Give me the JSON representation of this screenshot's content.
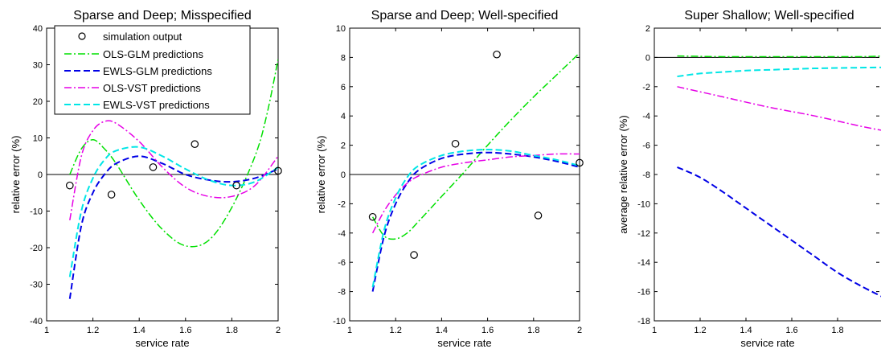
{
  "colors": {
    "sim": "#000000",
    "ols_glm": "#00e000",
    "ewls_glm": "#0000e6",
    "ols_vst": "#e600e6",
    "ewls_vst": "#00e6e6",
    "zero": "#000000"
  },
  "chart_data": [
    {
      "type": "line",
      "title": "Sparse and Deep; Misspecified",
      "xlabel": "service rate",
      "ylabel": "relative error (%)",
      "xlim": [
        1,
        2
      ],
      "ylim": [
        -40,
        40
      ],
      "xticks": [
        "1",
        "1.2",
        "1.4",
        "1.6",
        "1.8",
        "2"
      ],
      "xtick_values": [
        1,
        1.2,
        1.4,
        1.6,
        1.8,
        2
      ],
      "yticks": [
        "-40",
        "-30",
        "-20",
        "-10",
        "0",
        "10",
        "20",
        "30",
        "40"
      ],
      "ytick_values": [
        -40,
        -30,
        -20,
        -10,
        0,
        10,
        20,
        30,
        40
      ],
      "zero_line": true,
      "legend": {
        "placement": "top-left",
        "entries": [
          "simulation output",
          "OLS-GLM predictions",
          "EWLS-GLM predictions",
          "OLS-VST predictions",
          "EWLS-VST predictions"
        ]
      },
      "points": {
        "name": "simulation output",
        "x": [
          1.1,
          1.28,
          1.46,
          1.64,
          1.82,
          2.0
        ],
        "y": [
          -3,
          -5.5,
          2,
          8.3,
          -3,
          1
        ]
      },
      "series": [
        {
          "name": "OLS-GLM predictions",
          "style": "dashdot",
          "color_key": "ols_glm",
          "x": [
            1.1,
            1.15,
            1.2,
            1.25,
            1.3,
            1.4,
            1.5,
            1.6,
            1.7,
            1.8,
            1.9,
            1.95,
            2.0
          ],
          "y": [
            0,
            7,
            9.5,
            7,
            3,
            -7,
            -15,
            -19.5,
            -18,
            -9,
            5,
            16,
            31.5
          ]
        },
        {
          "name": "EWLS-GLM predictions",
          "style": "dashed",
          "color_key": "ewls_glm",
          "x": [
            1.1,
            1.15,
            1.2,
            1.25,
            1.3,
            1.4,
            1.5,
            1.6,
            1.7,
            1.8,
            1.9,
            2.0
          ],
          "y": [
            -34,
            -14,
            -5,
            0,
            3,
            5,
            3,
            0,
            -1.5,
            -2,
            -1,
            1.5
          ]
        },
        {
          "name": "OLS-VST predictions",
          "style": "dashdot",
          "color_key": "ols_vst",
          "x": [
            1.1,
            1.15,
            1.2,
            1.25,
            1.3,
            1.4,
            1.5,
            1.6,
            1.7,
            1.8,
            1.9,
            2.0
          ],
          "y": [
            -12.5,
            5,
            12,
            14.5,
            14,
            9,
            2,
            -3.5,
            -6,
            -6,
            -3,
            5
          ]
        },
        {
          "name": "EWLS-VST predictions",
          "style": "dashed",
          "color_key": "ewls_vst",
          "x": [
            1.1,
            1.15,
            1.2,
            1.25,
            1.3,
            1.4,
            1.5,
            1.6,
            1.7,
            1.8,
            1.9,
            2.0
          ],
          "y": [
            -28,
            -10,
            -1,
            4,
            6.5,
            7.5,
            5,
            1.5,
            -1.5,
            -3,
            -2,
            2
          ]
        }
      ]
    },
    {
      "type": "line",
      "title": "Sparse and Deep; Well-specified",
      "xlabel": "service rate",
      "ylabel": "relative error (%)",
      "xlim": [
        1,
        2
      ],
      "ylim": [
        -10,
        10
      ],
      "xticks": [
        "1",
        "1.2",
        "1.4",
        "1.6",
        "1.8",
        "2"
      ],
      "xtick_values": [
        1,
        1.2,
        1.4,
        1.6,
        1.8,
        2
      ],
      "yticks": [
        "-10",
        "-8",
        "-6",
        "-4",
        "-2",
        "0",
        "2",
        "4",
        "6",
        "8",
        "10"
      ],
      "ytick_values": [
        -10,
        -8,
        -6,
        -4,
        -2,
        0,
        2,
        4,
        6,
        8,
        10
      ],
      "zero_line": true,
      "points": {
        "name": "simulation output",
        "x": [
          1.1,
          1.28,
          1.46,
          1.64,
          1.82,
          2.0
        ],
        "y": [
          -2.9,
          -5.5,
          2.1,
          8.2,
          -2.8,
          0.8
        ]
      },
      "series": [
        {
          "name": "OLS-GLM predictions",
          "style": "dashdot",
          "color_key": "ols_glm",
          "x": [
            1.1,
            1.15,
            1.2,
            1.25,
            1.3,
            1.4,
            1.5,
            1.6,
            1.7,
            1.8,
            1.9,
            2.0
          ],
          "y": [
            -2.9,
            -4.2,
            -4.4,
            -4.0,
            -3.2,
            -1.5,
            0.2,
            2.0,
            3.7,
            5.3,
            6.8,
            8.3
          ]
        },
        {
          "name": "EWLS-GLM predictions",
          "style": "dashed",
          "color_key": "ewls_glm",
          "x": [
            1.1,
            1.15,
            1.2,
            1.25,
            1.3,
            1.4,
            1.5,
            1.6,
            1.7,
            1.8,
            1.9,
            2.0
          ],
          "y": [
            -8.0,
            -4.2,
            -2.0,
            -0.6,
            0.3,
            1.1,
            1.4,
            1.5,
            1.4,
            1.2,
            0.9,
            0.5
          ]
        },
        {
          "name": "OLS-VST predictions",
          "style": "dashdot",
          "color_key": "ols_vst",
          "x": [
            1.1,
            1.15,
            1.2,
            1.25,
            1.3,
            1.4,
            1.5,
            1.6,
            1.7,
            1.8,
            1.9,
            2.0
          ],
          "y": [
            -4.0,
            -2.5,
            -1.4,
            -0.6,
            -0.1,
            0.5,
            0.8,
            1.0,
            1.2,
            1.3,
            1.4,
            1.4
          ]
        },
        {
          "name": "EWLS-VST predictions",
          "style": "dashed",
          "color_key": "ewls_vst",
          "x": [
            1.1,
            1.15,
            1.2,
            1.25,
            1.3,
            1.4,
            1.5,
            1.6,
            1.7,
            1.8,
            1.9,
            2.0
          ],
          "y": [
            -7.7,
            -3.8,
            -1.6,
            -0.2,
            0.6,
            1.3,
            1.6,
            1.7,
            1.6,
            1.3,
            1.0,
            0.6
          ]
        }
      ]
    },
    {
      "type": "line",
      "title": "Super Shallow; Well-specified",
      "xlabel": "service rate",
      "ylabel": "average relative error (%)",
      "xlim": [
        1,
        2
      ],
      "ylim": [
        -18,
        2
      ],
      "xticks": [
        "1",
        "1.2",
        "1.4",
        "1.6",
        "1.8"
      ],
      "xtick_values": [
        1,
        1.2,
        1.4,
        1.6,
        1.8
      ],
      "yticks": [
        "-18",
        "-16",
        "-14",
        "-12",
        "-10",
        "-8",
        "-6",
        "-4",
        "-2",
        "0",
        "2"
      ],
      "ytick_values": [
        -18,
        -16,
        -14,
        -12,
        -10,
        -8,
        -6,
        -4,
        -2,
        0,
        2
      ],
      "zero_line": true,
      "series": [
        {
          "name": "OLS-GLM predictions",
          "style": "dashdot",
          "color_key": "ols_glm",
          "x": [
            1.1,
            1.3,
            1.5,
            1.7,
            1.9,
            2.0
          ],
          "y": [
            0.1,
            0.05,
            0.05,
            0.05,
            0.05,
            0.1
          ]
        },
        {
          "name": "EWLS-GLM predictions",
          "style": "dashed",
          "color_key": "ewls_glm",
          "x": [
            1.1,
            1.2,
            1.3,
            1.4,
            1.5,
            1.6,
            1.7,
            1.8,
            1.9,
            2.0
          ],
          "y": [
            -7.5,
            -8.2,
            -9.2,
            -10.3,
            -11.4,
            -12.5,
            -13.6,
            -14.7,
            -15.6,
            -16.4
          ]
        },
        {
          "name": "OLS-VST predictions",
          "style": "dashdot",
          "color_key": "ols_vst",
          "x": [
            1.1,
            1.3,
            1.5,
            1.7,
            1.9,
            2.0
          ],
          "y": [
            -2.0,
            -2.7,
            -3.4,
            -4.0,
            -4.7,
            -5.0
          ]
        },
        {
          "name": "EWLS-VST predictions",
          "style": "dashed",
          "color_key": "ewls_vst",
          "x": [
            1.1,
            1.2,
            1.3,
            1.4,
            1.5,
            1.6,
            1.7,
            1.8,
            1.9,
            2.0
          ],
          "y": [
            -1.3,
            -1.1,
            -1.0,
            -0.9,
            -0.85,
            -0.8,
            -0.75,
            -0.72,
            -0.7,
            -0.68
          ]
        }
      ]
    }
  ]
}
